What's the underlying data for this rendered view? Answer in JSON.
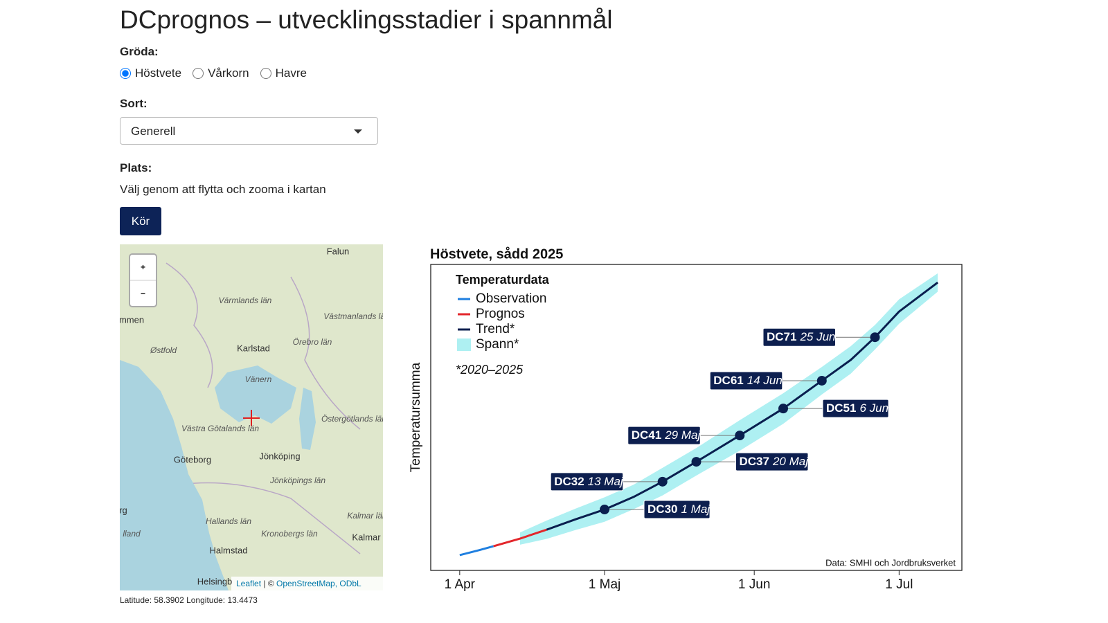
{
  "header": {
    "title": "DCprognos – utvecklingsstadier i spannmål"
  },
  "form": {
    "crop_label": "Gröda:",
    "crops": [
      "Höstvete",
      "Vårkorn",
      "Havre"
    ],
    "selected_crop": 0,
    "variety_label": "Sort:",
    "variety": "Generell",
    "place_label": "Plats:",
    "place_hint": "Välj genom att flytta och zooma i kartan",
    "run_button": "Kör"
  },
  "map": {
    "zoom_in": "+",
    "zoom_out": "−",
    "labels": [
      "Falun",
      "Värmlands län",
      "Västmanlands län",
      "mmen",
      "Karlstad",
      "Örebro län",
      "Østfold",
      "Vänern",
      "Västra Götalands län",
      "Östergötlands län",
      "Göteborg",
      "Jönköping",
      "Jönköpings län",
      "rg",
      "Hallands län",
      "Kronobergs län",
      "Kalmar län",
      "lland",
      "Kalmar",
      "Halmstad",
      "Helsingb"
    ],
    "attribution_leaflet": "Leaflet",
    "attribution_sep": " | © ",
    "attribution_osm": "OpenStreetMap, ODbL",
    "coords": "Latitude: 58.3902 Longitude: 13.4473"
  },
  "chart_data": {
    "type": "line",
    "title": "Höstvete, sådd 2025",
    "y_label": "Temperatursumma",
    "legend_title": "Temperaturdata",
    "note": "*2020–2025",
    "source": "Data: SMHI och Jordbruksverket",
    "x": [
      0,
      4,
      7,
      12.5,
      18,
      24,
      30,
      36,
      42,
      49,
      58,
      67,
      75,
      81,
      86,
      91,
      99
    ],
    "xlim": [
      -6,
      104
    ],
    "xticks": [
      {
        "value": 0,
        "label": "1 Apr"
      },
      {
        "value": 30,
        "label": "1 Maj"
      },
      {
        "value": 61,
        "label": "1 Jun"
      },
      {
        "value": 91,
        "label": "1 Jul"
      }
    ],
    "ylim": [
      0,
      100
    ],
    "series": [
      {
        "name": "Observation",
        "color": "#1f7fe0",
        "values": [
          5.0,
          6.6,
          7.9,
          null,
          null,
          null,
          null,
          null,
          null,
          null,
          null,
          null,
          null,
          null,
          null,
          null,
          null
        ]
      },
      {
        "name": "Prognos",
        "color": "#e3262b",
        "values": [
          null,
          null,
          7.9,
          10.4,
          13.3,
          null,
          null,
          null,
          null,
          null,
          null,
          null,
          null,
          null,
          null,
          null,
          null
        ]
      },
      {
        "name": "Trend*",
        "color": "#0a1f4f",
        "values": [
          null,
          null,
          null,
          null,
          13.3,
          16.7,
          19.9,
          24.0,
          29.0,
          35.5,
          44.1,
          52.9,
          62.0,
          68.8,
          76.2,
          84.6,
          94.1
        ]
      },
      {
        "name": "Spann*",
        "color": "#aef0f2",
        "low": [
          null,
          null,
          null,
          8.4,
          10.3,
          13.2,
          15.9,
          20.0,
          24.5,
          31.0,
          39.1,
          47.9,
          57.5,
          64.3,
          72.2,
          80.6,
          91.1
        ],
        "high": [
          null,
          null,
          null,
          12.4,
          16.3,
          20.2,
          23.9,
          28.0,
          33.5,
          40.0,
          49.1,
          57.9,
          66.5,
          73.3,
          80.2,
          88.6,
          97.1
        ]
      }
    ],
    "stages": [
      {
        "label": "DC30",
        "date": "1 Maj",
        "x": 30,
        "y": 19.9
      },
      {
        "label": "DC32",
        "date": "13 Maj",
        "x": 42,
        "y": 29.0
      },
      {
        "label": "DC37",
        "date": "20 Maj",
        "x": 49,
        "y": 35.5
      },
      {
        "label": "DC41",
        "date": "29 Maj",
        "x": 58,
        "y": 44.1
      },
      {
        "label": "DC51",
        "date": "6 Jun",
        "x": 67,
        "y": 52.9
      },
      {
        "label": "DC61",
        "date": "14 Jun",
        "x": 75,
        "y": 62.0
      },
      {
        "label": "DC71",
        "date": "25 Jun",
        "x": 86,
        "y": 76.2
      }
    ]
  }
}
